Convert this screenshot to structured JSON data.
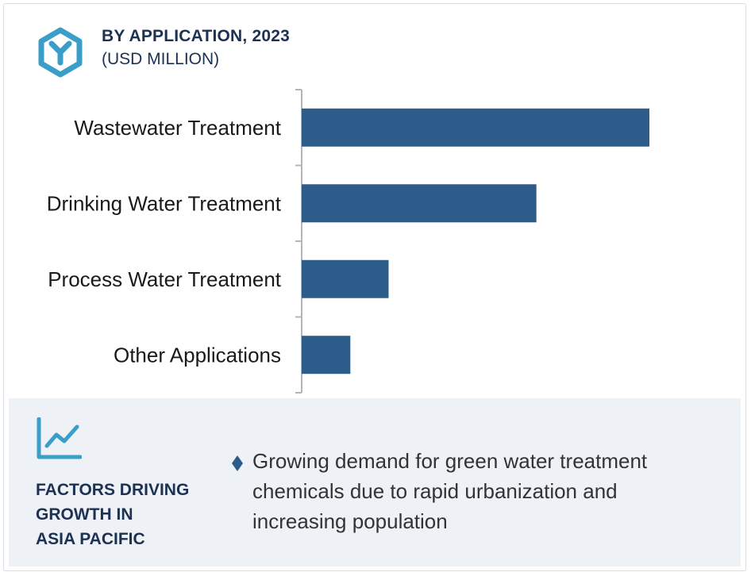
{
  "header": {
    "title": "BY APPLICATION, 2023",
    "subtitle": "(USD MILLION)",
    "icon": "hexagon-y-logo-icon"
  },
  "chart_data": {
    "type": "bar",
    "orientation": "horizontal",
    "categories": [
      "Wastewater Treatment",
      "Drinking Water Treatment",
      "Process Water Treatment",
      "Other Applications"
    ],
    "values": [
      100,
      67.5,
      25,
      14
    ],
    "xlim": [
      0,
      100
    ],
    "title": "BY APPLICATION, 2023",
    "subtitle": "(USD MILLION)",
    "grid": false,
    "bar_color": "#2e5c8a"
  },
  "factors": {
    "icon": "line-chart-trend-icon",
    "title_lines": [
      "FACTORS DRIVING",
      "GROWTH IN",
      "ASIA PACIFIC"
    ],
    "bullet_icon": "diamond-bullet-icon",
    "bullet_color": "#2e5c8a",
    "points": [
      "Growing demand for green water treatment chemicals due to rapid urbanization and increasing population"
    ]
  },
  "colors": {
    "accent": "#2e5c8a",
    "heading": "#1d3153",
    "logo": "#3a9ec9",
    "panel": "#eef1f6"
  }
}
